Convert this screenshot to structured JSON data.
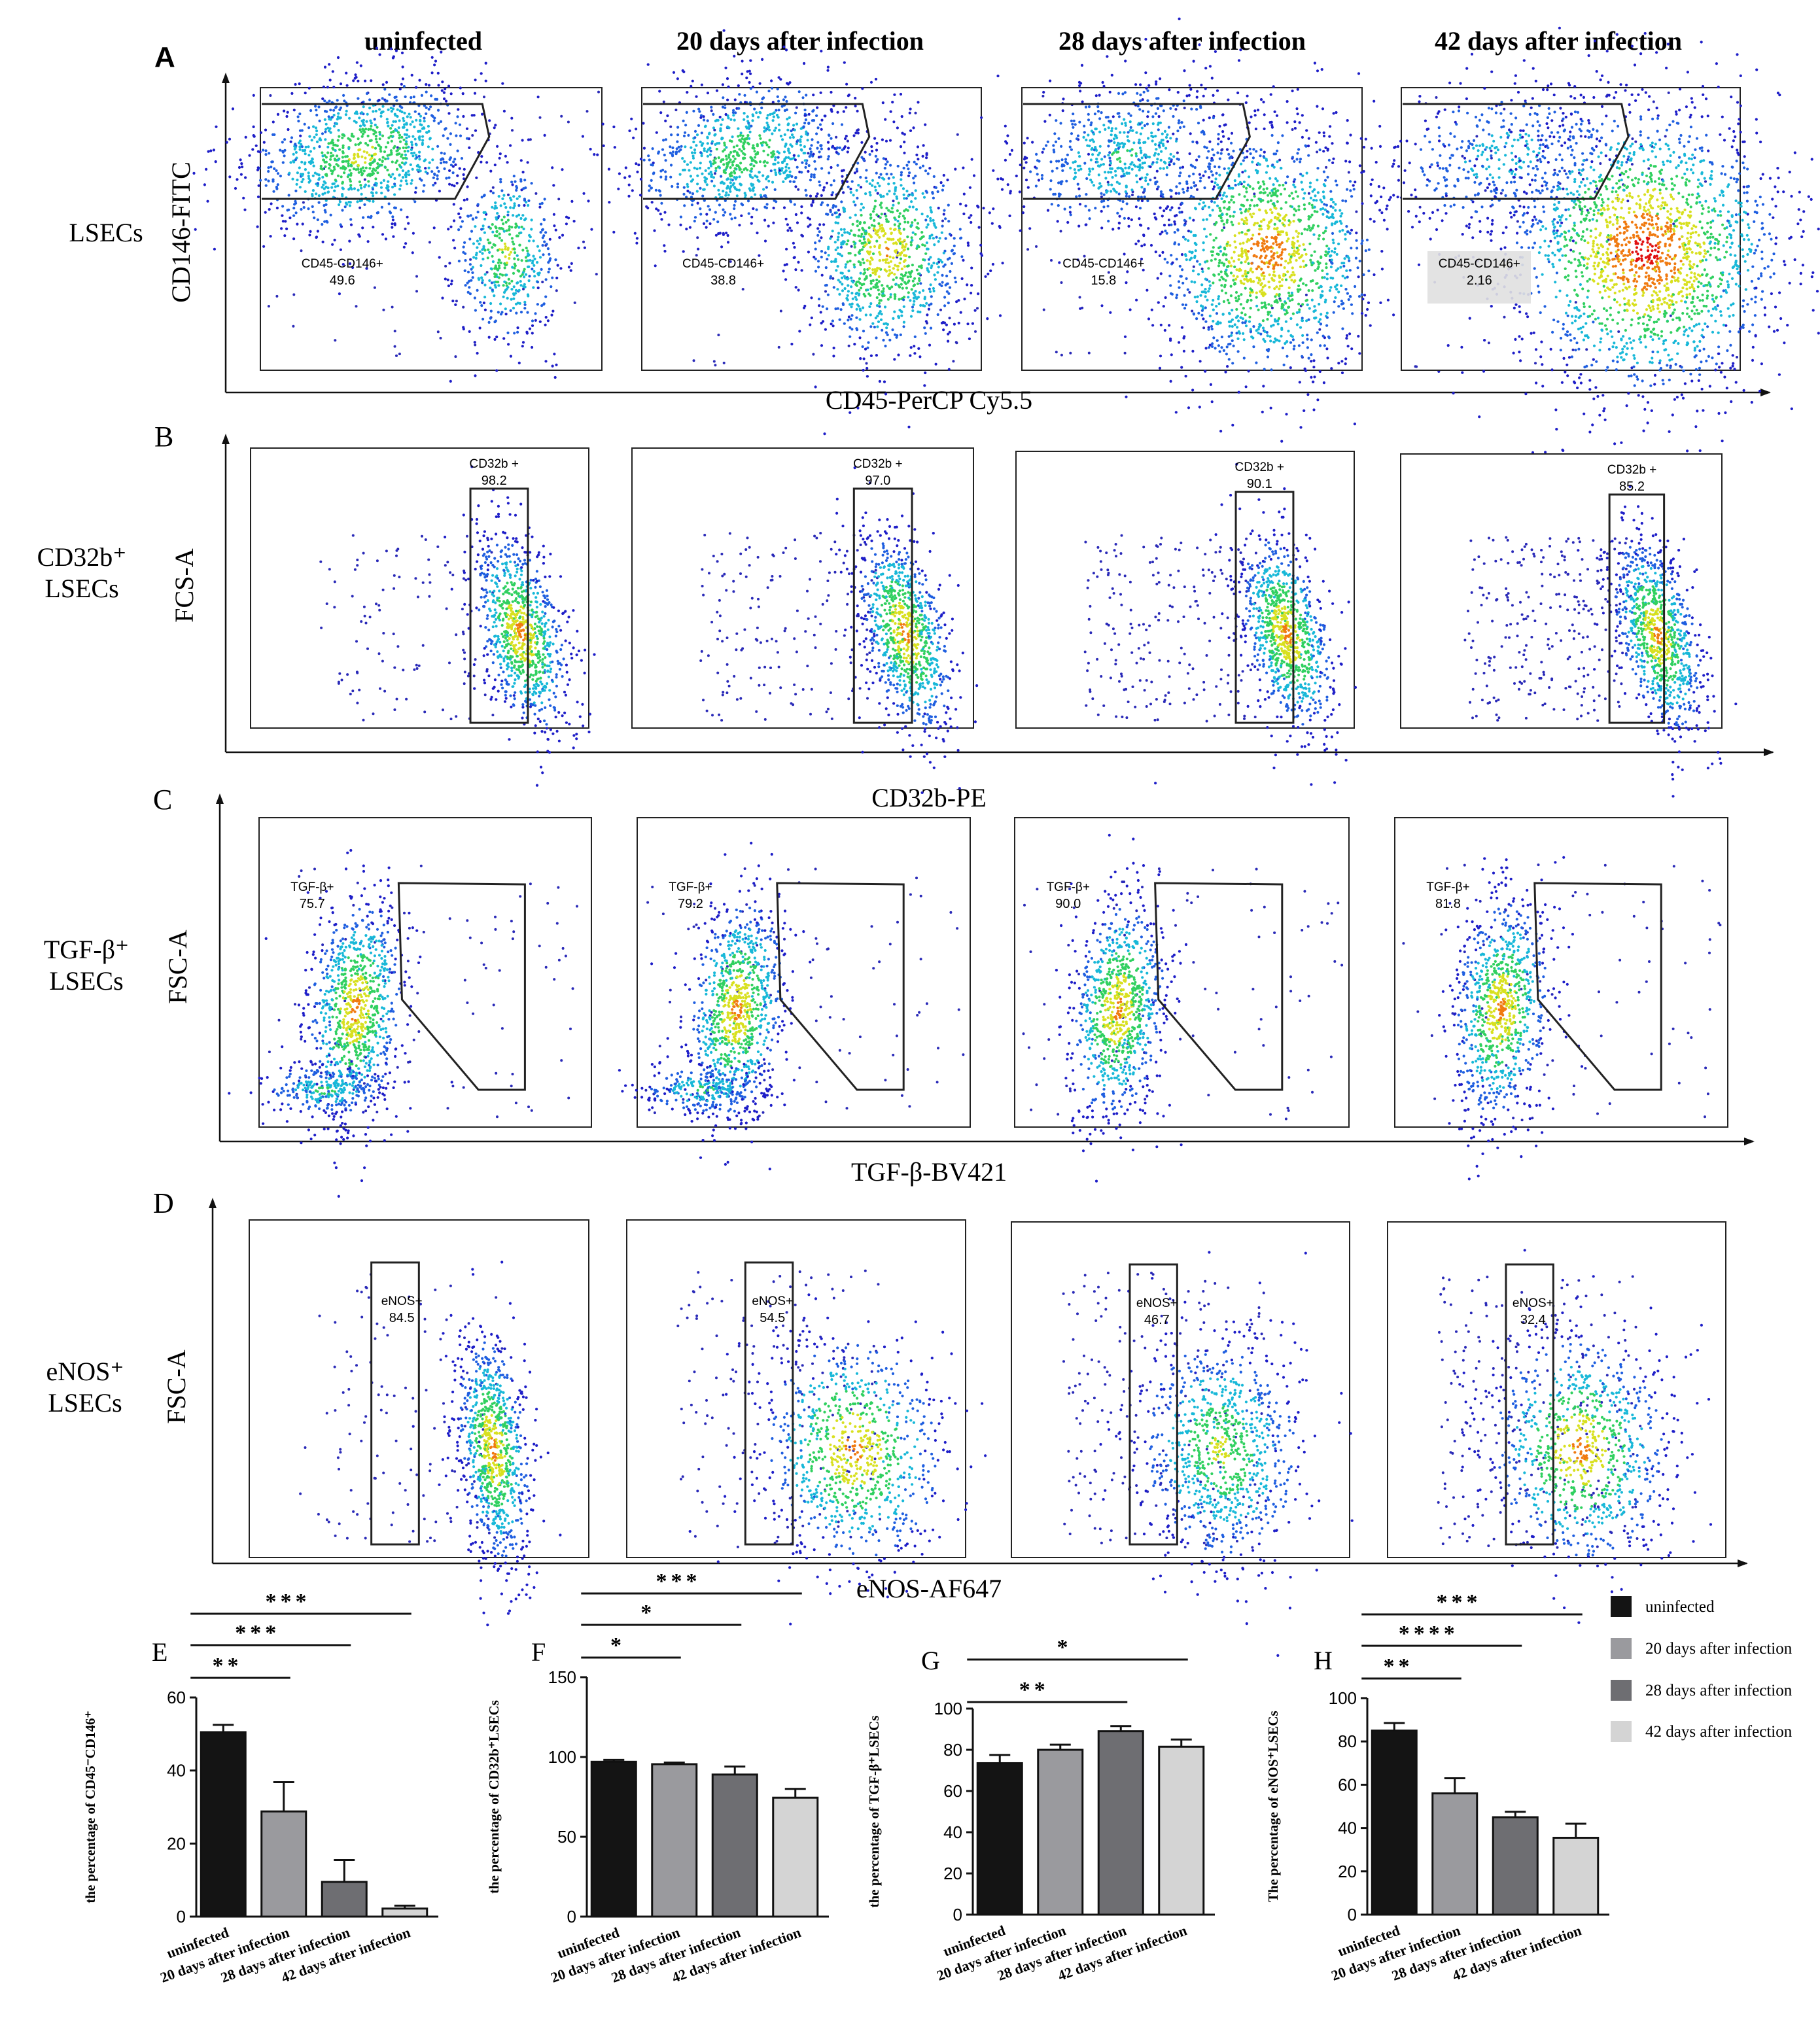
{
  "panel_labels": {
    "A": "A",
    "B": "B",
    "C": "C",
    "D": "D",
    "E": "E",
    "F": "F",
    "G": "G",
    "H": "H"
  },
  "column_titles": [
    "uninfected",
    "20 days after infection",
    "28 days after infection",
    "42 days after infection"
  ],
  "flow_rows": [
    {
      "id": "A",
      "row_label": [
        "LSECs"
      ],
      "y_axis": "CD146-FITC",
      "x_axis": "CD45-PerCP Cy5.5",
      "gate_name": "CD45-CD146+",
      "gate_values": [
        "49.6",
        "38.8",
        "15.8",
        "2.16"
      ]
    },
    {
      "id": "B",
      "row_label": [
        "CD32b⁺",
        "LSECs"
      ],
      "y_axis": "FCS-A",
      "x_axis": "CD32b-PE",
      "gate_name": "CD32b +",
      "gate_values": [
        "98.2",
        "97.0",
        "90.1",
        "85.2"
      ]
    },
    {
      "id": "C",
      "row_label": [
        "TGF-β⁺",
        "LSECs"
      ],
      "y_axis": "FSC-A",
      "x_axis": "TGF-β-BV421",
      "gate_name": "TGF-β+",
      "gate_values": [
        "75.7",
        "79.2",
        "90.0",
        "81.8"
      ]
    },
    {
      "id": "D",
      "row_label": [
        "eNOS⁺",
        "LSECs"
      ],
      "y_axis": "FSC-A",
      "x_axis": "eNOS-AF647",
      "gate_name": "eNOS+",
      "gate_values": [
        "84.5",
        "54.5",
        "46.7",
        "32.4"
      ]
    }
  ],
  "legend": {
    "entries": [
      "uninfected",
      "20 days after infection",
      "28 days after infection",
      "42 days after infection"
    ],
    "colors": [
      "#141414",
      "#9a9a9e",
      "#6e6e72",
      "#d4d4d4"
    ]
  },
  "chart_data": [
    {
      "panel": "E",
      "type": "bar",
      "categories": [
        "uninfected",
        "20 days after infection",
        "28 days after infection",
        "42 days after infection"
      ],
      "values": [
        50.5,
        28.8,
        9.5,
        2.2
      ],
      "errors": [
        2,
        8,
        6,
        0.8
      ],
      "ylabel": "the percentage of CD45⁻CD146⁺",
      "ylim": [
        0,
        60
      ],
      "yticks": [
        0,
        20,
        40,
        60
      ],
      "significance": [
        {
          "from": 0,
          "to": 1,
          "label": "**"
        },
        {
          "from": 0,
          "to": 2,
          "label": "***"
        },
        {
          "from": 0,
          "to": 3,
          "label": "***"
        }
      ]
    },
    {
      "panel": "F",
      "type": "bar",
      "categories": [
        "uninfected",
        "20 days after infection",
        "28 days after infection",
        "42 days after infection"
      ],
      "values": [
        97,
        95.5,
        89,
        74.5
      ],
      "errors": [
        1.2,
        1,
        5,
        5.5
      ],
      "ylabel": "the percentage of CD32b⁺LSECs",
      "ylim": [
        0,
        150
      ],
      "yticks": [
        0,
        50,
        100,
        150
      ],
      "significance": [
        {
          "from": 0,
          "to": 1,
          "label": "*"
        },
        {
          "from": 0,
          "to": 2,
          "label": "*"
        },
        {
          "from": 0,
          "to": 3,
          "label": "***"
        }
      ]
    },
    {
      "panel": "G",
      "type": "bar",
      "categories": [
        "uninfected",
        "20 days after infection",
        "28 days after infection",
        "42 days after infection"
      ],
      "values": [
        73.5,
        80,
        89,
        81.5
      ],
      "errors": [
        4,
        2.5,
        2.5,
        3.5
      ],
      "ylabel": "the percentage of TGF-β⁺LSECs",
      "ylim": [
        0,
        100
      ],
      "yticks": [
        0,
        20,
        40,
        60,
        80,
        100
      ],
      "significance": [
        {
          "from": 0,
          "to": 2,
          "label": "**"
        },
        {
          "from": 0,
          "to": 3,
          "label": "*"
        }
      ]
    },
    {
      "panel": "H",
      "type": "bar",
      "categories": [
        "uninfected",
        "20 days after infection",
        "28 days after infection",
        "42 days after infection"
      ],
      "values": [
        85,
        56,
        45,
        35.5
      ],
      "errors": [
        3.5,
        7,
        2.5,
        6.5
      ],
      "ylabel": "The percentage of eNOS⁺LSECs",
      "ylim": [
        0,
        100
      ],
      "yticks": [
        0,
        20,
        40,
        60,
        80,
        100
      ],
      "significance": [
        {
          "from": 0,
          "to": 1,
          "label": "**"
        },
        {
          "from": 0,
          "to": 2,
          "label": "****"
        },
        {
          "from": 0,
          "to": 3,
          "label": "***"
        }
      ]
    }
  ]
}
